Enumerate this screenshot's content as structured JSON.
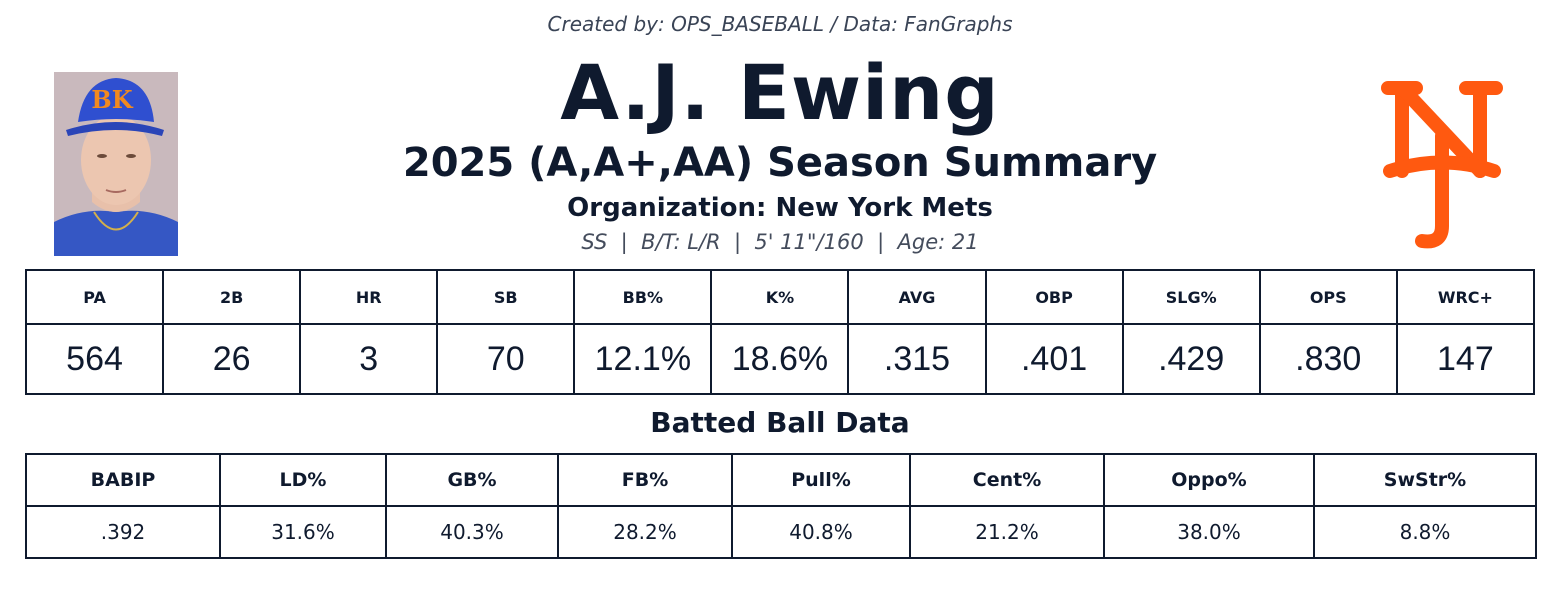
{
  "header": {
    "credit": "Created by: OPS_BASEBALL / Data: FanGraphs",
    "player_name": "A.J. Ewing",
    "season_title": "2025 (A,A+,AA) Season Summary",
    "organization": "Organization: New York Mets",
    "bio": "SS  |  B/T: L/R  |  5' 11\"/160  |  Age: 21"
  },
  "logo": {
    "text": "NY",
    "color": "#ff5910"
  },
  "cap_logo": {
    "text": "BK",
    "color": "#f28a1e"
  },
  "stats": {
    "headers": [
      "PA",
      "2B",
      "HR",
      "SB",
      "BB%",
      "K%",
      "AVG",
      "OBP",
      "SLG%",
      "OPS",
      "WRC+"
    ],
    "values": [
      "564",
      "26",
      "3",
      "70",
      "12.1%",
      "18.6%",
      ".315",
      ".401",
      ".429",
      ".830",
      "147"
    ]
  },
  "batted_ball": {
    "title": "Batted Ball Data",
    "headers": [
      "BABIP",
      "LD%",
      "GB%",
      "FB%",
      "Pull%",
      "Cent%",
      "Oppo%",
      "SwStr%"
    ],
    "values": [
      ".392",
      "31.6%",
      "40.3%",
      "28.2%",
      "40.8%",
      "21.2%",
      "38.0%",
      "8.8%"
    ]
  }
}
